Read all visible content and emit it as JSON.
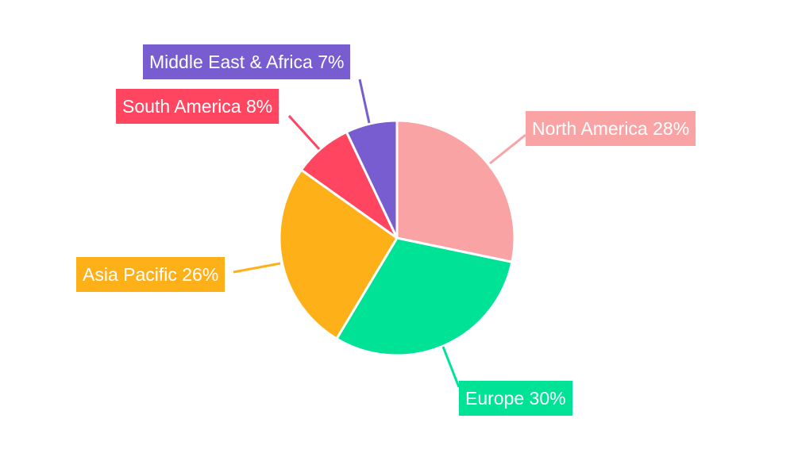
{
  "chart_data": {
    "type": "pie",
    "title": "",
    "start": "top",
    "direction": "clockwise",
    "slices": [
      {
        "label": "North America",
        "value": 28,
        "display": "North America 28%",
        "color": "#F9A3A4"
      },
      {
        "label": "Europe",
        "value": 30,
        "display": "Europe 30%",
        "color": "#00E396"
      },
      {
        "label": "Asia Pacific",
        "value": 26,
        "display": "Asia Pacific 26%",
        "color": "#FEB019"
      },
      {
        "label": "South America",
        "value": 8,
        "display": "South America 8%",
        "color": "#FF4560"
      },
      {
        "label": "Middle East & Africa",
        "value": 7,
        "display": "Middle East & Africa 7%",
        "color": "#775DD0"
      }
    ]
  }
}
